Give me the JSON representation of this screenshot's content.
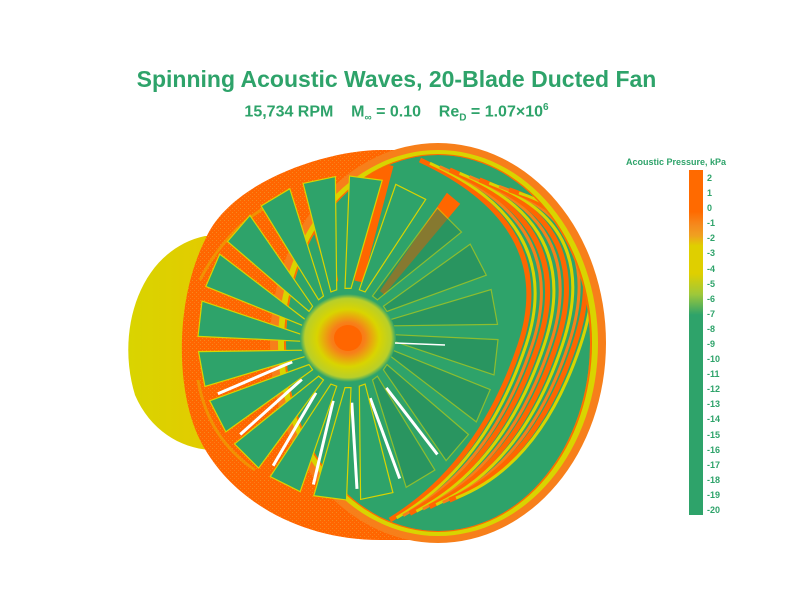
{
  "figure": {
    "title": "Spinning Acoustic Waves, 20-Blade Ducted Fan",
    "subtitle": {
      "rpm": "15,734 RPM",
      "mach_symbol": "M",
      "mach_subscript": "∞",
      "mach_value": "= 0.10",
      "re_symbol": "Re",
      "re_subscript": "D",
      "re_value": "= 1.07×10",
      "re_exponent": "6"
    }
  },
  "legend": {
    "title": "Acoustic Pressure,  kPa",
    "ticks": [
      "2",
      "1",
      "0",
      "-1",
      "-2",
      "-3",
      "-4",
      "-5",
      "-6",
      "-7",
      "-8",
      "-9",
      "-10",
      "-11",
      "-12",
      "-13",
      "-14",
      "-15",
      "-16",
      "-17",
      "-18",
      "-19",
      "-20"
    ],
    "colors": {
      "high": "#ff6a00",
      "mid_high": "#f58a1e",
      "mid": "#dfcf00",
      "low": "#2ea36a"
    }
  },
  "model": {
    "blade_count": 20,
    "colors": {
      "orange": "#ff6600",
      "light_orange": "#f77f1a",
      "yellow": "#d9d400",
      "green": "#2ea36a",
      "dark_green": "#258a58"
    }
  }
}
